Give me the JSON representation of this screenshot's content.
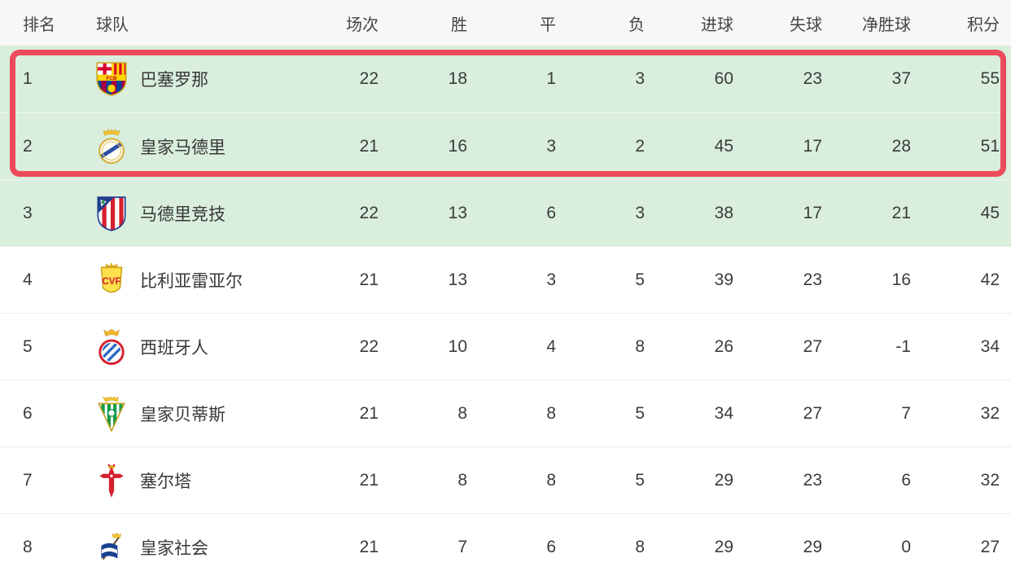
{
  "chart_data": {
    "type": "table",
    "columns": [
      "排名",
      "球队",
      "场次",
      "胜",
      "平",
      "负",
      "进球",
      "失球",
      "净胜球",
      "积分"
    ],
    "rows": [
      {
        "rank": "1",
        "team": "巴塞罗那",
        "badge_icon": "barcelona-badge-icon",
        "stats": [
          "22",
          "18",
          "1",
          "3",
          "60",
          "23",
          "37",
          "55"
        ],
        "green": true,
        "in_highlight_box": true
      },
      {
        "rank": "2",
        "team": "皇家马德里",
        "badge_icon": "real-madrid-badge-icon",
        "stats": [
          "21",
          "16",
          "3",
          "2",
          "45",
          "17",
          "28",
          "51"
        ],
        "green": true,
        "in_highlight_box": true
      },
      {
        "rank": "3",
        "team": "马德里竞技",
        "badge_icon": "atletico-madrid-badge-icon",
        "stats": [
          "22",
          "13",
          "6",
          "3",
          "38",
          "17",
          "21",
          "45"
        ],
        "green": true,
        "in_highlight_box": false
      },
      {
        "rank": "4",
        "team": "比利亚雷亚尔",
        "badge_icon": "villarreal-badge-icon",
        "stats": [
          "21",
          "13",
          "3",
          "5",
          "39",
          "23",
          "16",
          "42"
        ],
        "green": false,
        "in_highlight_box": false
      },
      {
        "rank": "5",
        "team": "西班牙人",
        "badge_icon": "espanyol-badge-icon",
        "stats": [
          "22",
          "10",
          "4",
          "8",
          "26",
          "27",
          "-1",
          "34"
        ],
        "green": false,
        "in_highlight_box": false
      },
      {
        "rank": "6",
        "team": "皇家贝蒂斯",
        "badge_icon": "real-betis-badge-icon",
        "stats": [
          "21",
          "8",
          "8",
          "5",
          "34",
          "27",
          "7",
          "32"
        ],
        "green": false,
        "in_highlight_box": false
      },
      {
        "rank": "7",
        "team": "塞尔塔",
        "badge_icon": "celta-vigo-badge-icon",
        "stats": [
          "21",
          "8",
          "8",
          "5",
          "29",
          "23",
          "6",
          "32"
        ],
        "green": false,
        "in_highlight_box": false
      },
      {
        "rank": "8",
        "team": "皇家社会",
        "badge_icon": "real-sociedad-badge-icon",
        "stats": [
          "21",
          "7",
          "6",
          "8",
          "29",
          "29",
          "0",
          "27"
        ],
        "green": false,
        "in_highlight_box": false
      }
    ]
  },
  "colors": {
    "green_row_bg": "#d9eedd",
    "highlight_box_red": "#ee4b5a",
    "header_bg": "#f7f7f7"
  }
}
